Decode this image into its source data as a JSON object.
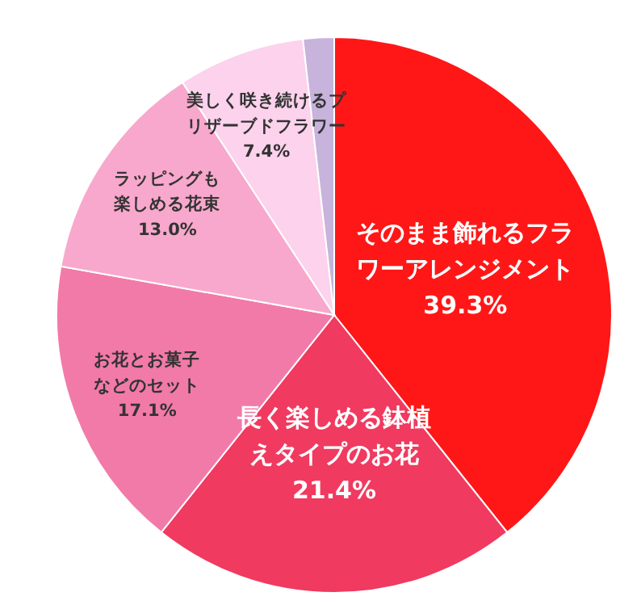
{
  "chart_data": {
    "type": "pie",
    "categories": [
      "そのまま飾れるフラワーアレンジメント",
      "長く楽しめる鉢植えタイプのお花",
      "お花とお菓子などのセット",
      "ラッピングも楽しめる花束",
      "美しく咲き続けるプリザーブドフラワー",
      null
    ],
    "values": [
      39.3,
      21.4,
      17.1,
      13.0,
      7.4,
      1.8
    ],
    "value_labels": [
      "39.3%",
      "21.4%",
      "17.1%",
      "13.0%",
      "7.4%",
      null
    ],
    "colors": [
      "#ff1717",
      "#f03a60",
      "#f27aa8",
      "#f8a8cc",
      "#fcd2ec",
      "#c7b3db"
    ]
  }
}
